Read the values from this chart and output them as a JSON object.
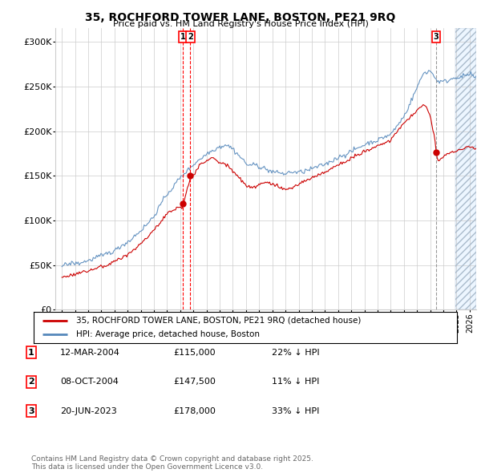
{
  "title": "35, ROCHFORD TOWER LANE, BOSTON, PE21 9RQ",
  "subtitle": "Price paid vs. HM Land Registry's House Price Index (HPI)",
  "legend_label_red": "35, ROCHFORD TOWER LANE, BOSTON, PE21 9RQ (detached house)",
  "legend_label_blue": "HPI: Average price, detached house, Boston",
  "footer": "Contains HM Land Registry data © Crown copyright and database right 2025.\nThis data is licensed under the Open Government Licence v3.0.",
  "transactions": [
    {
      "num": 1,
      "date": "12-MAR-2004",
      "price": "£115,000",
      "pct": "22% ↓ HPI",
      "year": 2004.19
    },
    {
      "num": 2,
      "date": "08-OCT-2004",
      "price": "£147,500",
      "pct": "11% ↓ HPI",
      "year": 2004.77
    },
    {
      "num": 3,
      "date": "20-JUN-2023",
      "price": "£178,000",
      "pct": "33% ↓ HPI",
      "year": 2023.46
    }
  ],
  "yticks": [
    0,
    50000,
    100000,
    150000,
    200000,
    250000,
    300000
  ],
  "ytick_labels": [
    "£0",
    "£50K",
    "£100K",
    "£150K",
    "£200K",
    "£250K",
    "£300K"
  ],
  "xmin": 1994.5,
  "xmax": 2026.5,
  "ymin": 0,
  "ymax": 315000,
  "hpi_color": "#5588bb",
  "price_color": "#cc0000",
  "grid_color": "#cccccc",
  "background_color": "#ffffff"
}
